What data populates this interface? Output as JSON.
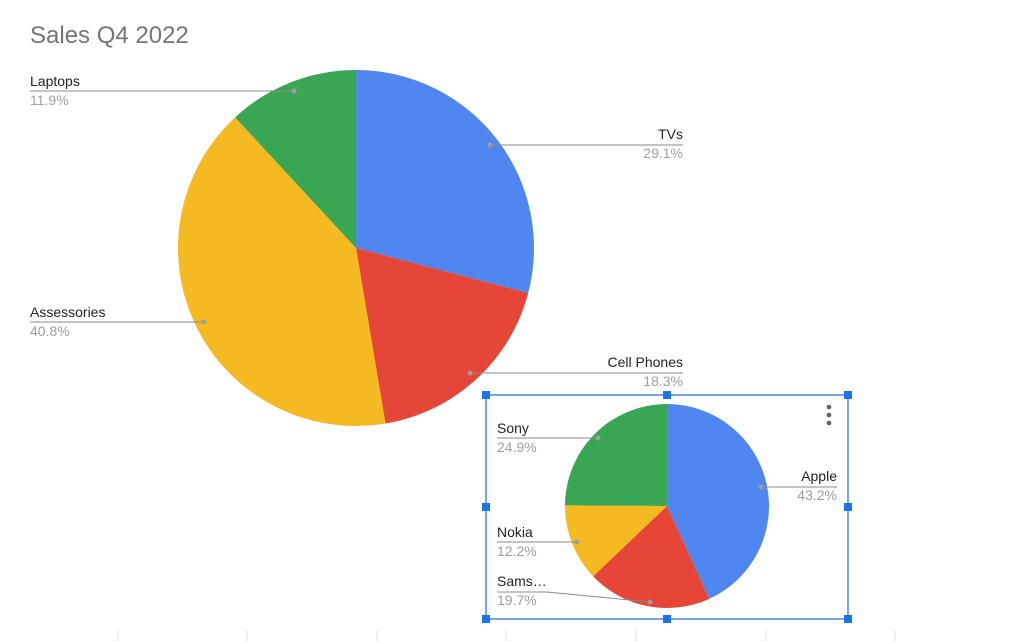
{
  "colors": {
    "blue": "#4f86ef",
    "red": "#e54637",
    "yellow": "#f5b921",
    "green": "#38a653",
    "selection": "#4a86e8"
  },
  "chart_data": [
    {
      "type": "pie",
      "title": "Sales Q4 2022",
      "slices": [
        {
          "label": "TVs",
          "value": 29.1,
          "pct_label": "29.1%",
          "color": "#4f86ef"
        },
        {
          "label": "Cell Phones",
          "value": 18.3,
          "pct_label": "18.3%",
          "color": "#e54637"
        },
        {
          "label": "Assessories",
          "value": 40.8,
          "pct_label": "40.8%",
          "color": "#f5b921"
        },
        {
          "label": "Laptops",
          "value": 11.9,
          "pct_label": "11.9%",
          "color": "#38a653"
        }
      ]
    },
    {
      "type": "pie",
      "title": "",
      "selected": true,
      "slices": [
        {
          "label": "Apple",
          "value": 43.2,
          "pct_label": "43.2%",
          "color": "#4f86ef"
        },
        {
          "label": "Sams…",
          "value": 19.7,
          "pct_label": "19.7%",
          "color": "#e54637"
        },
        {
          "label": "Nokia",
          "value": 12.2,
          "pct_label": "12.2%",
          "color": "#f5b921"
        },
        {
          "label": "Sony",
          "value": 24.9,
          "pct_label": "24.9%",
          "color": "#38a653"
        }
      ]
    }
  ],
  "icons": {
    "chart_menu": "more-vert-icon"
  }
}
